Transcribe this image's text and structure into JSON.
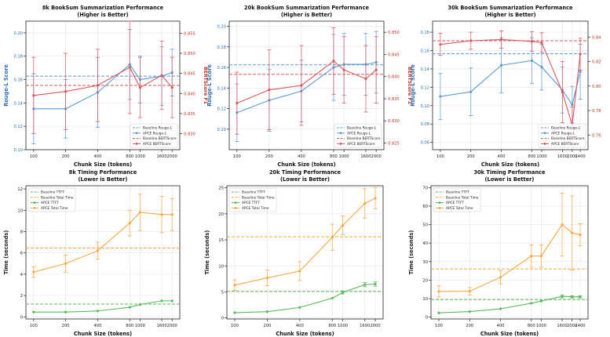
{
  "chart_data": [
    {
      "type": "line",
      "kind": "bertsum",
      "title": "8k BookSum Summarization Performance",
      "subtitle": "(Higher is Better)",
      "xlabel": "Chunk Size (tokens)",
      "ylabel": "Rouge-L Score",
      "y2label": "BERTScore F1",
      "x": [
        100,
        200,
        400,
        800,
        1000,
        1600,
        2000
      ],
      "xticks": [
        "100",
        "200",
        "400",
        "800",
        "1000",
        "1600",
        "2000"
      ],
      "ylim": [
        0.1,
        0.21
      ],
      "yticks": [
        "0.10",
        "0.12",
        "0.14",
        "0.16",
        "0.18",
        "0.20"
      ],
      "y2lim": [
        0.826,
        0.858
      ],
      "y2ticks": [
        "0.830",
        "0.835",
        "0.840",
        "0.845",
        "0.850",
        "0.855"
      ],
      "series": [
        {
          "name": "APCE Rouge-L",
          "axis": "left",
          "color": "#5b9bd5",
          "values": [
            0.135,
            0.135,
            0.149,
            0.173,
            0.16,
            0.163,
            0.166
          ],
          "err": [
            0.03,
            0.025,
            0.03,
            0.03,
            0.02,
            0.025,
            0.02
          ]
        },
        {
          "name": "APCE BERTScore",
          "axis": "right",
          "color": "#d9565f",
          "values": [
            0.8395,
            0.8405,
            0.842,
            0.8465,
            0.8415,
            0.8445,
            0.8415
          ],
          "err": [
            0.0095,
            0.0095,
            0.009,
            0.0115,
            0.0075,
            0.0085,
            0.0075
          ]
        }
      ],
      "baselines": [
        {
          "name": "Baseline Rouge-L",
          "axis": "left",
          "color": "#5b9bd5",
          "value": 0.163
        },
        {
          "name": "Baseline BERTScore",
          "axis": "right",
          "color": "#d9565f",
          "value": 0.842
        }
      ],
      "legend": [
        "Baseline Rouge-L",
        "APCE Rouge-L",
        "Baseline BERTScore",
        "APCE BERTScore"
      ],
      "legend_position": "lower-right"
    },
    {
      "type": "line",
      "kind": "bertsum",
      "title": "20k BookSum Summarization Performance",
      "subtitle": "(Higher is Better)",
      "xlabel": "Chunk Size (tokens)",
      "ylabel": "Rouge-L Score",
      "y2label": "BERTScore F1",
      "x": [
        100,
        200,
        400,
        800,
        1000,
        1600,
        2000
      ],
      "xticks": [
        "100",
        "200",
        "400",
        "800",
        "1000",
        "1600",
        "2000"
      ],
      "ylim": [
        0.08,
        0.205
      ],
      "yticks": [
        "0.10",
        "0.12",
        "0.14",
        "0.16",
        "0.18",
        "0.20"
      ],
      "y2lim": [
        0.8235,
        0.8525
      ],
      "y2ticks": [
        "0.825",
        "0.830",
        "0.835",
        "0.840",
        "0.845",
        "0.850"
      ],
      "series": [
        {
          "name": "APCE Rouge-L",
          "axis": "left",
          "color": "#5b9bd5",
          "values": [
            0.116,
            0.128,
            0.137,
            0.16,
            0.163,
            0.163,
            0.165
          ],
          "err": [
            0.028,
            0.03,
            0.03,
            0.032,
            0.03,
            0.03,
            0.03
          ]
        },
        {
          "name": "APCE BERTScore",
          "axis": "right",
          "color": "#d9565f",
          "values": [
            0.834,
            0.837,
            0.838,
            0.8435,
            0.8415,
            0.8395,
            0.8415
          ],
          "err": [
            0.007,
            0.009,
            0.009,
            0.0075,
            0.0075,
            0.0075,
            0.0075
          ]
        }
      ],
      "baselines": [
        {
          "name": "Baseline Rouge-L",
          "axis": "left",
          "color": "#5b9bd5",
          "value": 0.1625
        },
        {
          "name": "Baseline BERTScore",
          "axis": "right",
          "color": "#d9565f",
          "value": 0.8405
        }
      ],
      "legend": [
        "Baseline Rouge-L",
        "APCE Rouge-L",
        "Baseline BERTScore",
        "APCE BERTScore"
      ],
      "legend_position": "lower-right"
    },
    {
      "type": "line",
      "kind": "bertsum",
      "title": "30k BookSum Summarization Performance",
      "subtitle": "(Higher is Better)",
      "xlabel": "Chunk Size (tokens)",
      "ylabel": "Rouge-L Score",
      "y2label": "BERTScore F1",
      "x": [
        100,
        200,
        400,
        800,
        1000,
        1600,
        2000,
        2400
      ],
      "xticks": [
        "100",
        "200",
        "400",
        "800",
        "1000",
        "1600",
        "2000",
        "2400"
      ],
      "ylim": [
        0.052,
        0.192
      ],
      "yticks": [
        "0.06",
        "0.08",
        "0.10",
        "0.12",
        "0.14",
        "0.16",
        "0.18"
      ],
      "y2lim": [
        0.748,
        0.853
      ],
      "y2ticks": [
        "0.76",
        "0.78",
        "0.80",
        "0.82",
        "0.84"
      ],
      "series": [
        {
          "name": "APCE Rouge-L",
          "axis": "left",
          "color": "#5b9bd5",
          "values": [
            0.11,
            0.115,
            0.144,
            0.149,
            0.142,
            0.117,
            0.101,
            0.137
          ],
          "err": [
            0.025,
            0.026,
            0.03,
            0.025,
            0.025,
            0.025,
            0.02,
            0.03
          ]
        },
        {
          "name": "APCE BERTScore",
          "axis": "right",
          "color": "#d9565f",
          "values": [
            0.834,
            0.837,
            0.838,
            0.8365,
            0.8355,
            0.795,
            0.768,
            0.826
          ],
          "err": [
            0.009,
            0.007,
            0.007,
            0.008,
            0.008,
            0.025,
            0.015,
            0.013
          ]
        }
      ],
      "baselines": [
        {
          "name": "Baseline Rouge-L",
          "axis": "left",
          "color": "#5b9bd5",
          "value": 0.1565
        },
        {
          "name": "Baseline BERTScore",
          "axis": "right",
          "color": "#d9565f",
          "value": 0.837
        }
      ],
      "legend": [
        "Baseline Rouge-L",
        "APCE Rouge-L",
        "Baseline BERTScore",
        "APCE BERTScore"
      ],
      "legend_position": "lower-right"
    },
    {
      "type": "line",
      "kind": "timing",
      "title": "8k Timing Performance",
      "subtitle": "(Lower is Better)",
      "xlabel": "Chunk Size (tokens)",
      "ylabel": "Time (seconds)",
      "x": [
        100,
        200,
        400,
        800,
        1000,
        1600,
        2000
      ],
      "xticks": [
        "100",
        "200",
        "400",
        "800",
        "1000",
        "1600",
        "2000"
      ],
      "ylim": [
        -0.2,
        12.3
      ],
      "yticks": [
        "0",
        "2",
        "4",
        "6",
        "8",
        "10",
        "12"
      ],
      "series": [
        {
          "name": "APCE TTFT",
          "color": "#5cb85c",
          "values": [
            0.45,
            0.45,
            0.55,
            0.9,
            1.15,
            1.5,
            1.5
          ],
          "err": [
            0,
            0,
            0,
            0,
            0,
            0,
            0
          ]
        },
        {
          "name": "APCE Total Time",
          "color": "#f7a943",
          "values": [
            4.2,
            5.0,
            6.2,
            8.8,
            9.8,
            9.6,
            9.6
          ],
          "err": [
            0.5,
            0.8,
            0.8,
            1.2,
            1.7,
            1.7,
            1.5
          ]
        }
      ],
      "baselines": [
        {
          "name": "Baseline TTFT",
          "color": "#5cb85c",
          "value": 1.2
        },
        {
          "name": "Baseline Total Time",
          "color": "#f7a943",
          "value": 6.45
        }
      ],
      "legend": [
        "Baseline TTFT",
        "Baseline Total Time",
        "APCE TTFT",
        "APCE Total Time"
      ],
      "legend_position": "top-left"
    },
    {
      "type": "line",
      "kind": "timing",
      "title": "20k Timing Performance",
      "subtitle": "(Lower is Better)",
      "xlabel": "Chunk Size (tokens)",
      "ylabel": "Time (seconds)",
      "x": [
        100,
        200,
        400,
        800,
        1000,
        1600,
        2000
      ],
      "xticks": [
        "100",
        "200",
        "400",
        "800",
        "1000",
        "1600",
        "2000"
      ],
      "ylim": [
        -0.2,
        25.4
      ],
      "yticks": [
        "0",
        "5",
        "10",
        "15",
        "20",
        "25"
      ],
      "series": [
        {
          "name": "APCE TTFT",
          "color": "#5cb85c",
          "values": [
            1.0,
            1.2,
            2.0,
            3.8,
            4.9,
            6.4,
            6.5
          ],
          "err": [
            0,
            0,
            0,
            0,
            0.3,
            0.4,
            0.4
          ]
        },
        {
          "name": "APCE Total Time",
          "color": "#f7a943",
          "values": [
            6.3,
            7.7,
            9.0,
            15.5,
            17.8,
            22.0,
            23.0
          ],
          "err": [
            1.0,
            1.5,
            1.8,
            2.5,
            1.8,
            2.8,
            2.0
          ]
        }
      ],
      "baselines": [
        {
          "name": "Baseline TTFT",
          "color": "#5cb85c",
          "value": 5.1
        },
        {
          "name": "Baseline Total Time",
          "color": "#f7a943",
          "value": 15.6
        }
      ],
      "legend": [
        "Baseline TTFT",
        "Baseline Total Time",
        "APCE TTFT",
        "APCE Total Time"
      ],
      "legend_position": "top-left"
    },
    {
      "type": "line",
      "kind": "timing",
      "title": "30k Timing Performance",
      "subtitle": "(Lower is Better)",
      "xlabel": "Chunk Size (tokens)",
      "ylabel": "Time (seconds)",
      "x": [
        100,
        200,
        400,
        800,
        1000,
        1600,
        2000,
        2400
      ],
      "xticks": [
        "100",
        "200",
        "400",
        "800",
        "1000",
        "1600",
        "2000",
        "2400"
      ],
      "ylim": [
        -1,
        71
      ],
      "yticks": [
        "0",
        "10",
        "20",
        "30",
        "40",
        "50",
        "60",
        "70"
      ],
      "series": [
        {
          "name": "APCE TTFT",
          "color": "#5cb85c",
          "values": [
            2.3,
            3.0,
            4.5,
            7.5,
            8.7,
            11.2,
            11.0,
            11.0
          ],
          "err": [
            0,
            0,
            0,
            0,
            0,
            0.8,
            0.6,
            0.6
          ]
        },
        {
          "name": "APCE Total Time",
          "color": "#f7a943",
          "values": [
            13.9,
            14.0,
            21.5,
            33.0,
            33.0,
            50.0,
            45.5,
            44.5
          ],
          "err": [
            3.0,
            2.0,
            3.5,
            6.0,
            6.0,
            17.0,
            20.0,
            6.0
          ]
        }
      ],
      "baselines": [
        {
          "name": "Baseline TTFT",
          "color": "#5cb85c",
          "value": 9.5
        },
        {
          "name": "Baseline Total Time",
          "color": "#f7a943",
          "value": 26.0
        }
      ],
      "legend": [
        "Baseline TTFT",
        "Baseline Total Time",
        "APCE TTFT",
        "APCE Total Time"
      ],
      "legend_position": "top-left"
    }
  ]
}
